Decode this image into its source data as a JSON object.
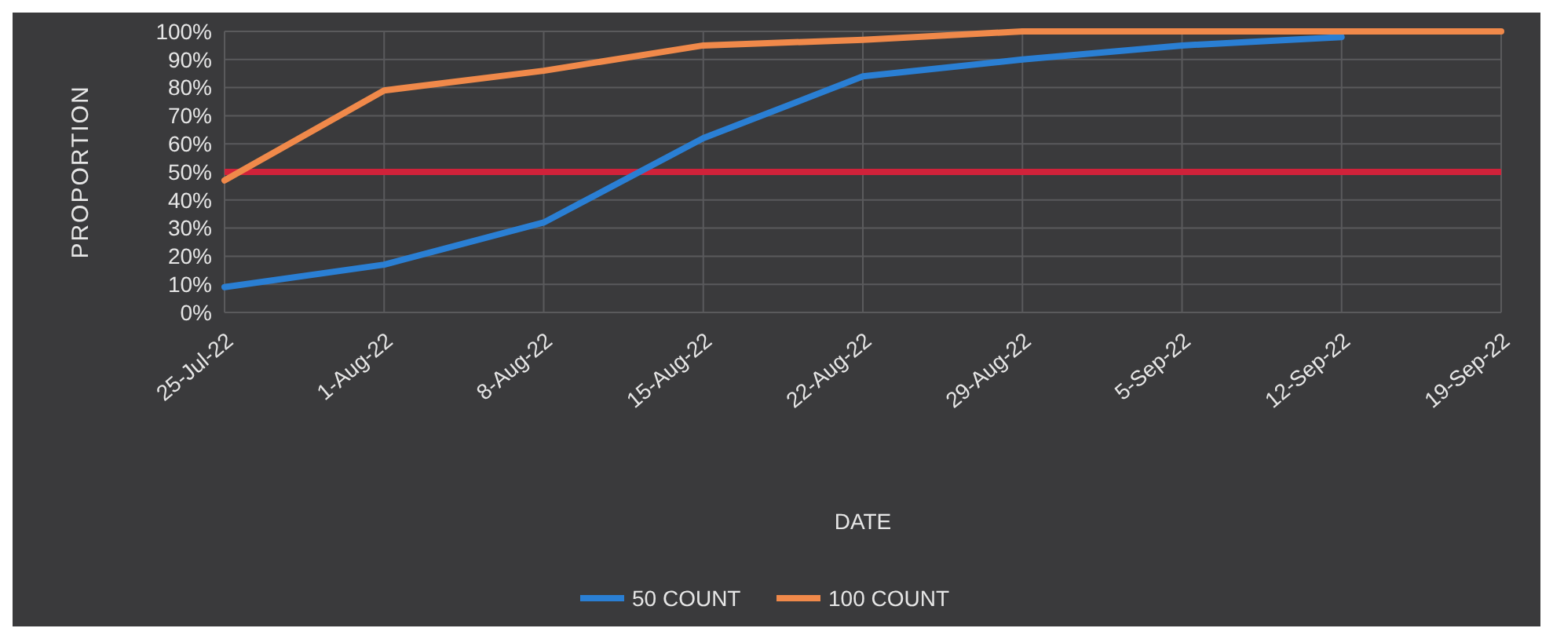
{
  "chart_data": {
    "type": "line",
    "xlabel": "DATE",
    "ylabel": "PROPORTION",
    "categories": [
      "25-Jul-22",
      "1-Aug-22",
      "8-Aug-22",
      "15-Aug-22",
      "22-Aug-22",
      "29-Aug-22",
      "5-Sep-22",
      "12-Sep-22",
      "19-Sep-22"
    ],
    "series": [
      {
        "name": "50 COUNT",
        "color": "#2a7fd4",
        "values": [
          9,
          17,
          32,
          62,
          84,
          90,
          95,
          98,
          null
        ]
      },
      {
        "name": "100 COUNT",
        "color": "#f0894a",
        "values": [
          47,
          79,
          86,
          95,
          97,
          100,
          100,
          100,
          100
        ]
      }
    ],
    "ylim": [
      0,
      100
    ],
    "yticks": [
      {
        "value": 0,
        "label": "0%"
      },
      {
        "value": 10,
        "label": "10%"
      },
      {
        "value": 20,
        "label": "20%"
      },
      {
        "value": 30,
        "label": "30%"
      },
      {
        "value": 40,
        "label": "40%"
      },
      {
        "value": 50,
        "label": "50%"
      },
      {
        "value": 60,
        "label": "60%"
      },
      {
        "value": 70,
        "label": "70%"
      },
      {
        "value": 80,
        "label": "80%"
      },
      {
        "value": 90,
        "label": "90%"
      },
      {
        "value": 100,
        "label": "100%"
      }
    ],
    "ref_lines": [
      {
        "axis": "y",
        "value": 50,
        "color": "#d0223a"
      }
    ],
    "grid": true,
    "legend": "bottom",
    "marker": "none",
    "line_style": "solid"
  }
}
